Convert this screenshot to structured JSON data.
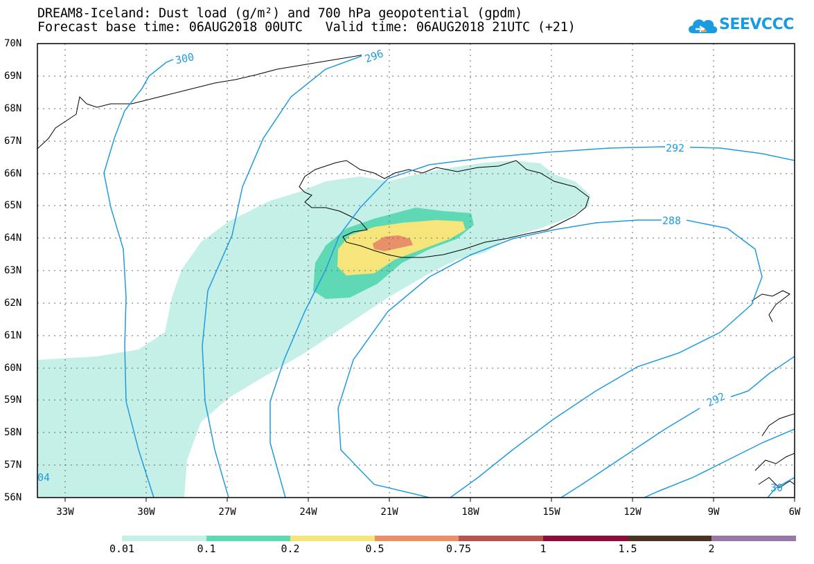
{
  "header": {
    "title_line1": "DREAM8-Iceland: Dust load (g/m²) and 700 hPa geopotential (gpdm)",
    "title_line2": "Forecast base time: 06AUG2018 00UTC   Valid time: 06AUG2018 21UTC (+21)"
  },
  "logo": {
    "text": "SEEVCCC",
    "icon": "cloud-icon",
    "color": "#1a9be0"
  },
  "map": {
    "region": "Iceland",
    "lat_labels": [
      "70N",
      "69N",
      "68N",
      "67N",
      "66N",
      "65N",
      "64N",
      "63N",
      "62N",
      "61N",
      "60N",
      "59N",
      "58N",
      "57N",
      "56N"
    ],
    "lon_labels": [
      "33W",
      "30W",
      "27W",
      "24W",
      "21W",
      "18W",
      "15W",
      "12W",
      "9W",
      "6W"
    ],
    "contour_color": "#1e9be0",
    "contour_labels": [
      "300",
      "296",
      "292",
      "288",
      "292",
      "04",
      "30"
    ]
  },
  "colorbar": {
    "labels": [
      "0.01",
      "0.1",
      "0.2",
      "0.5",
      "0.75",
      "1",
      "1.5",
      "2"
    ],
    "colors": [
      "#c5f0e8",
      "#5ed9b4",
      "#f5e57a",
      "#e8906a",
      "#b2564e",
      "#8a0e3c",
      "#4a3320",
      "#9778a6"
    ]
  }
}
